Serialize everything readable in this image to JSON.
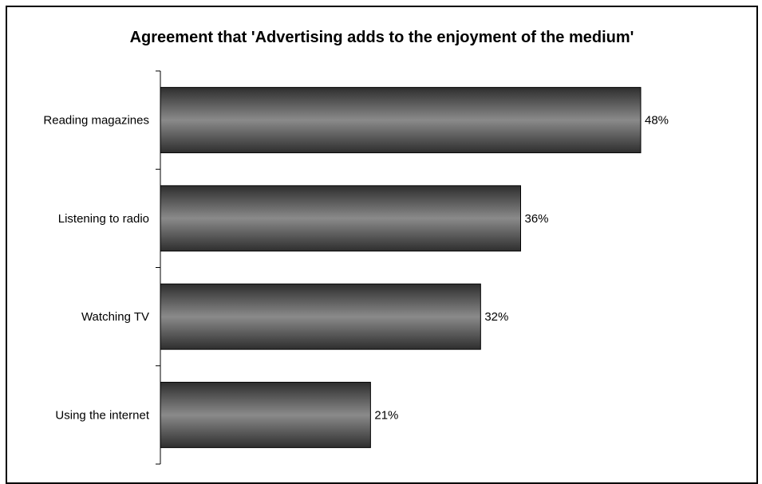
{
  "chart_data": {
    "type": "bar",
    "orientation": "horizontal",
    "title": "Agreement that 'Advertising adds to the enjoyment of the medium'",
    "categories": [
      "Reading magazines",
      "Listening to radio",
      "Watching TV",
      "Using the internet"
    ],
    "values": [
      48,
      36,
      32,
      21
    ],
    "value_labels": [
      "48%",
      "36%",
      "32%",
      "21%"
    ],
    "xlim": [
      0,
      60
    ],
    "grid": false,
    "legend": "none",
    "bar_color": "#555555"
  }
}
